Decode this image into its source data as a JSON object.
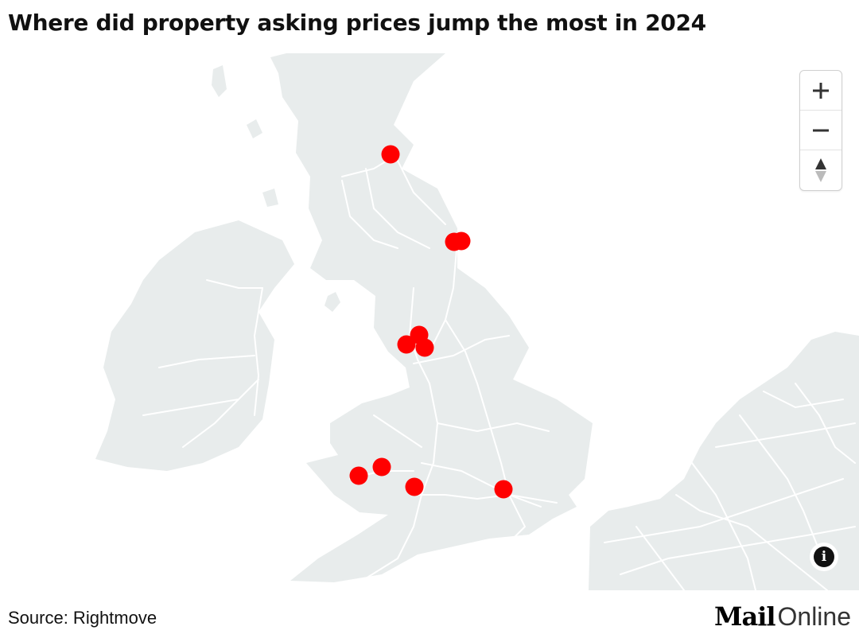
{
  "title": "Where did property asking prices jump the most in 2024",
  "source": "Source: Rightmove",
  "logo": {
    "part1": "Mail",
    "part2": "Online"
  },
  "controls": {
    "zoom_in_icon": "plus-icon",
    "zoom_out_icon": "minus-icon",
    "compass_icon": "compass-icon",
    "info_symbol": "i"
  },
  "colors": {
    "land": "#e8ecec",
    "roads": "#ffffff",
    "marker": "#ff0000",
    "water": "#ffffff"
  },
  "markers": [
    {
      "id": "edinburgh-area"
    },
    {
      "id": "newcastle-area-1"
    },
    {
      "id": "newcastle-area-2"
    },
    {
      "id": "manchester-area-1"
    },
    {
      "id": "manchester-area-2"
    },
    {
      "id": "manchester-area-3"
    },
    {
      "id": "swansea-area"
    },
    {
      "id": "cardiff-area-1"
    },
    {
      "id": "bristol-area"
    },
    {
      "id": "london-area"
    }
  ]
}
